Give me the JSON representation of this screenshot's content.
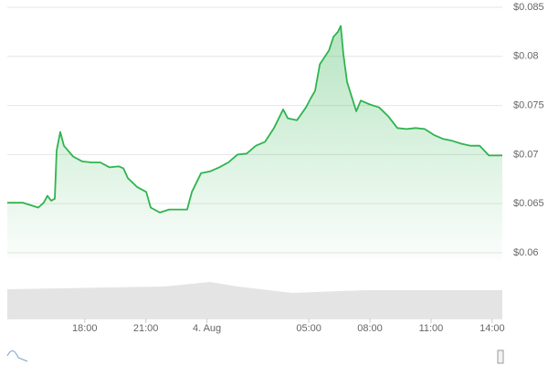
{
  "chart_data": {
    "type": "area",
    "color": "#2fb44f",
    "grid": true,
    "x": [
      14.2,
      14.96,
      15.72,
      15.99,
      16.17,
      16.35,
      16.53,
      16.62,
      16.8,
      16.98,
      17.43,
      17.88,
      18.33,
      18.77,
      19.22,
      19.67,
      19.9,
      20.12,
      20.57,
      21.02,
      21.24,
      21.69,
      22.14,
      22.59,
      23.03,
      23.26,
      23.71,
      24.16,
      24.6,
      25.05,
      25.5,
      25.95,
      26.4,
      26.85,
      27.29,
      27.74,
      27.97,
      28.42,
      28.86,
      29.09,
      29.31,
      29.54,
      29.99,
      30.21,
      30.43,
      30.57,
      30.7,
      30.88,
      31.33,
      31.55,
      32,
      32.45,
      32.9,
      33.35,
      33.8,
      34.24,
      34.69,
      35.14,
      35.59,
      36.04,
      36.49,
      36.94,
      37.39,
      37.84,
      38.5
    ],
    "values": [
      0.0651,
      0.0651,
      0.0646,
      0.0651,
      0.0658,
      0.0653,
      0.0655,
      0.0704,
      0.0723,
      0.0709,
      0.0698,
      0.0693,
      0.0692,
      0.0692,
      0.0687,
      0.0688,
      0.0686,
      0.0676,
      0.0667,
      0.0662,
      0.0646,
      0.0641,
      0.0644,
      0.0644,
      0.0644,
      0.0662,
      0.0681,
      0.0683,
      0.0687,
      0.0692,
      0.07,
      0.0701,
      0.0709,
      0.0713,
      0.0727,
      0.0746,
      0.0737,
      0.0735,
      0.0748,
      0.0757,
      0.0765,
      0.0792,
      0.0806,
      0.082,
      0.0825,
      0.0831,
      0.0802,
      0.0774,
      0.0744,
      0.0755,
      0.0751,
      0.0748,
      0.0739,
      0.0727,
      0.0726,
      0.0727,
      0.0726,
      0.072,
      0.0716,
      0.0714,
      0.0711,
      0.0709,
      0.0709,
      0.0699,
      0.0699
    ],
    "xlim": [
      14.2,
      38.5
    ],
    "xticks": [
      {
        "value": 18,
        "label": "18:00"
      },
      {
        "value": 21,
        "label": "21:00"
      },
      {
        "value": 24,
        "label": "4. Aug"
      },
      {
        "value": 29,
        "label": "05:00"
      },
      {
        "value": 32,
        "label": "08:00"
      },
      {
        "value": 35,
        "label": "11:00"
      },
      {
        "value": 38,
        "label": "14:00"
      }
    ],
    "ylim": [
      0.0593,
      0.0855
    ],
    "yticks": [
      {
        "value": 0.06,
        "label": "$0.06"
      },
      {
        "value": 0.065,
        "label": "$0.065"
      },
      {
        "value": 0.07,
        "label": "$0.07"
      },
      {
        "value": 0.075,
        "label": "$0.075"
      },
      {
        "value": 0.08,
        "label": "$0.08"
      },
      {
        "value": 0.085,
        "label": "$0.085"
      }
    ]
  }
}
